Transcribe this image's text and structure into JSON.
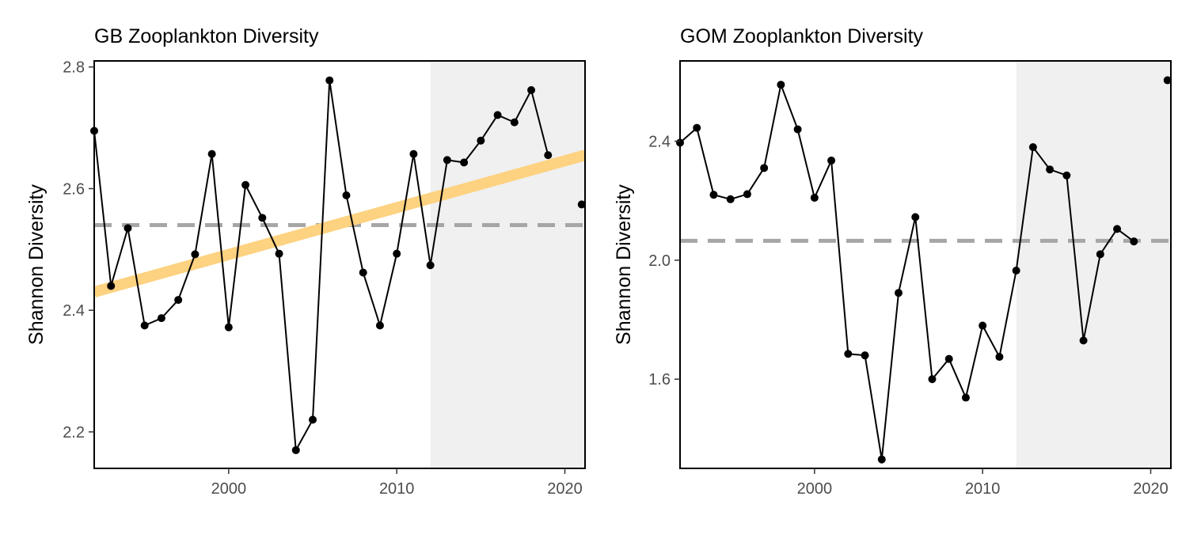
{
  "chart_data": [
    {
      "type": "line",
      "title": "GB Zooplankton Diversity",
      "xlabel": "",
      "ylabel": "Shannon Diversity",
      "xlim": [
        1992,
        2021.2
      ],
      "ylim": [
        2.14,
        2.81
      ],
      "xticks": [
        2000,
        2010,
        2020
      ],
      "yticks": [
        "2.2",
        "2.4",
        "2.6",
        "2.8"
      ],
      "shaded_region": [
        2012,
        2021.2
      ],
      "shaded_color": "#f0f0f0",
      "mean_line": 2.54,
      "mean_line_color": "#a6a6a6",
      "trend_line": {
        "x": [
          1992,
          2021.2
        ],
        "y": [
          2.43,
          2.655
        ],
        "color": "#fdd280"
      },
      "series": [
        {
          "x": [
            1992,
            1993,
            1994,
            1995,
            1996,
            1997,
            1998,
            1999,
            2000,
            2001,
            2002,
            2003,
            2004,
            2005,
            2006,
            2007,
            2008,
            2009,
            2010,
            2011,
            2012,
            2013,
            2014,
            2015,
            2016,
            2017,
            2018,
            2019
          ],
          "y": [
            2.695,
            2.44,
            2.535,
            2.375,
            2.387,
            2.417,
            2.492,
            2.657,
            2.372,
            2.606,
            2.552,
            2.493,
            2.17,
            2.22,
            2.778,
            2.589,
            2.462,
            2.375,
            2.493,
            2.657,
            2.474,
            2.647,
            2.643,
            2.679,
            2.721,
            2.709,
            2.762,
            2.655
          ]
        },
        {
          "x": [
            2021
          ],
          "y": [
            2.574
          ]
        }
      ]
    },
    {
      "type": "line",
      "title": "GOM Zooplankton Diversity",
      "xlabel": "",
      "ylabel": "Shannon Diversity",
      "xlim": [
        1992,
        2021.2
      ],
      "ylim": [
        1.3,
        2.67
      ],
      "xticks": [
        2000,
        2010,
        2020
      ],
      "yticks": [
        "1.6",
        "2.0",
        "2.4"
      ],
      "shaded_region": [
        2012,
        2021.2
      ],
      "shaded_color": "#f0f0f0",
      "mean_line": 2.065,
      "mean_line_color": "#a6a6a6",
      "series": [
        {
          "x": [
            1992,
            1993,
            1994,
            1995,
            1996,
            1997,
            1998,
            1999,
            2000,
            2001,
            2002,
            2003,
            2004,
            2005,
            2006,
            2007,
            2008,
            2009,
            2010,
            2011,
            2012,
            2013,
            2014,
            2015,
            2016,
            2017,
            2018,
            2019
          ],
          "y": [
            2.395,
            2.445,
            2.22,
            2.205,
            2.222,
            2.31,
            2.59,
            2.44,
            2.21,
            2.335,
            1.685,
            1.68,
            1.33,
            1.89,
            2.145,
            1.6,
            1.668,
            1.538,
            1.78,
            1.675,
            1.965,
            2.38,
            2.305,
            2.285,
            1.73,
            2.02,
            2.105,
            2.063
          ]
        },
        {
          "x": [
            2021
          ],
          "y": [
            2.605
          ]
        }
      ]
    }
  ]
}
